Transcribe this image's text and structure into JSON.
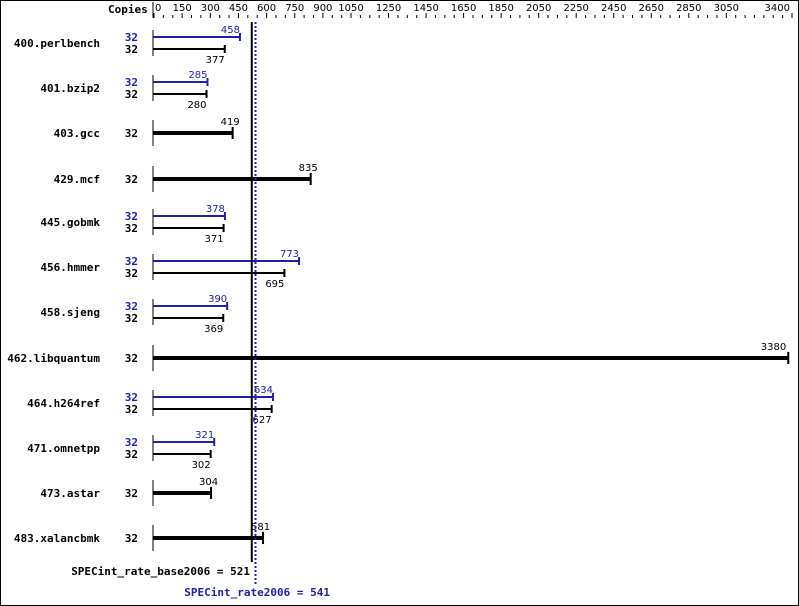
{
  "chart_data": {
    "type": "bar",
    "orientation": "horizontal",
    "axis_title": "Copies",
    "xlim": [
      0,
      3400
    ],
    "tick_labels": [
      0,
      150,
      300,
      450,
      600,
      750,
      900,
      1050,
      1250,
      1450,
      1650,
      1850,
      2050,
      2250,
      2450,
      2650,
      2850,
      3050,
      3400
    ],
    "colors": {
      "base": "#000000",
      "peak": "#2020b0"
    },
    "benchmarks": [
      {
        "name": "400.perlbench",
        "peak_copies": "32",
        "peak": 458,
        "base_copies": "32",
        "base": 377
      },
      {
        "name": "401.bzip2",
        "peak_copies": "32",
        "peak": 285,
        "base_copies": "32",
        "base": 280
      },
      {
        "name": "403.gcc",
        "base_copies": "32",
        "base": 419
      },
      {
        "name": "429.mcf",
        "base_copies": "32",
        "base": 835
      },
      {
        "name": "445.gobmk",
        "peak_copies": "32",
        "peak": 378,
        "base_copies": "32",
        "base": 371
      },
      {
        "name": "456.hmmer",
        "peak_copies": "32",
        "peak": 773,
        "base_copies": "32",
        "base": 695
      },
      {
        "name": "458.sjeng",
        "peak_copies": "32",
        "peak": 390,
        "base_copies": "32",
        "base": 369
      },
      {
        "name": "462.libquantum",
        "base_copies": "32",
        "base": 3380
      },
      {
        "name": "464.h264ref",
        "peak_copies": "32",
        "peak": 634,
        "base_copies": "32",
        "base": 627
      },
      {
        "name": "471.omnetpp",
        "peak_copies": "32",
        "peak": 321,
        "base_copies": "32",
        "base": 302
      },
      {
        "name": "473.astar",
        "base_copies": "32",
        "base": 304
      },
      {
        "name": "483.xalancbmk",
        "base_copies": "32",
        "base": 581
      }
    ],
    "base_summary": {
      "label": "SPECint_rate_base2006 = 521",
      "value": 521
    },
    "peak_summary": {
      "label": "SPECint_rate2006 = 541",
      "value": 541
    }
  }
}
